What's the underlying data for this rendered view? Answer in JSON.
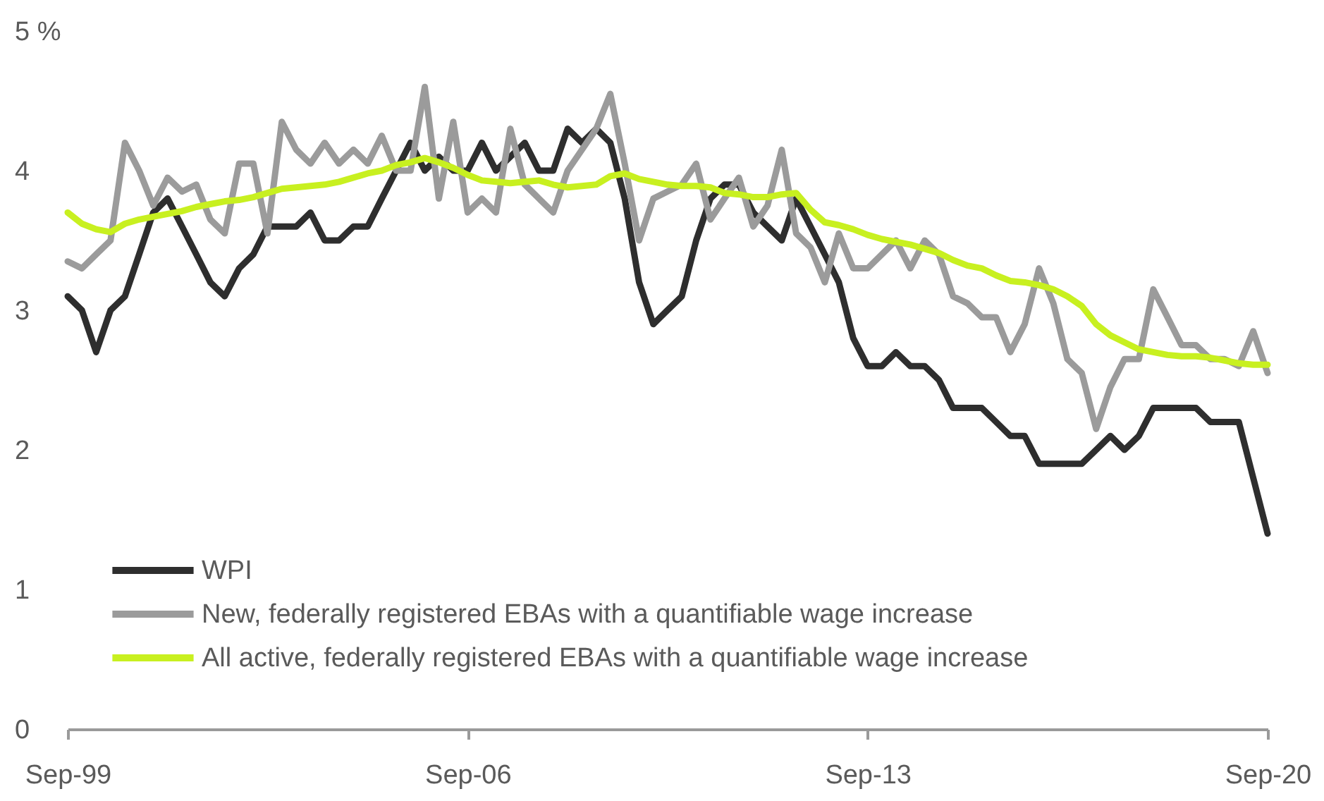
{
  "chart_data": {
    "type": "line",
    "x": [
      "1999-09",
      "1999-12",
      "2000-03",
      "2000-06",
      "2000-09",
      "2000-12",
      "2001-03",
      "2001-06",
      "2001-09",
      "2001-12",
      "2002-03",
      "2002-06",
      "2002-09",
      "2002-12",
      "2003-03",
      "2003-06",
      "2003-09",
      "2003-12",
      "2004-03",
      "2004-06",
      "2004-09",
      "2004-12",
      "2005-03",
      "2005-06",
      "2005-09",
      "2005-12",
      "2006-03",
      "2006-06",
      "2006-09",
      "2006-12",
      "2007-03",
      "2007-06",
      "2007-09",
      "2007-12",
      "2008-03",
      "2008-06",
      "2008-09",
      "2008-12",
      "2009-03",
      "2009-06",
      "2009-09",
      "2009-12",
      "2010-03",
      "2010-06",
      "2010-09",
      "2010-12",
      "2011-03",
      "2011-06",
      "2011-09",
      "2011-12",
      "2012-03",
      "2012-06",
      "2012-09",
      "2012-12",
      "2013-03",
      "2013-06",
      "2013-09",
      "2013-12",
      "2014-03",
      "2014-06",
      "2014-09",
      "2014-12",
      "2015-03",
      "2015-06",
      "2015-09",
      "2015-12",
      "2016-03",
      "2016-06",
      "2016-09",
      "2016-12",
      "2017-03",
      "2017-06",
      "2017-09",
      "2017-12",
      "2018-03",
      "2018-06",
      "2018-09",
      "2018-12",
      "2019-03",
      "2019-06",
      "2019-09",
      "2019-12",
      "2020-03",
      "2020-06",
      "2020-09"
    ],
    "series": [
      {
        "name": "WPI",
        "color": "#2e2e2e",
        "values": [
          3.1,
          3.0,
          2.7,
          3.0,
          3.1,
          3.4,
          3.7,
          3.8,
          3.6,
          3.4,
          3.2,
          3.1,
          3.3,
          3.4,
          3.6,
          3.6,
          3.6,
          3.7,
          3.5,
          3.5,
          3.6,
          3.6,
          3.8,
          4.0,
          4.2,
          4.0,
          4.1,
          4.0,
          4.0,
          4.2,
          4.0,
          4.1,
          4.2,
          4.0,
          4.0,
          4.3,
          4.2,
          4.3,
          4.2,
          3.8,
          3.2,
          2.9,
          3.0,
          3.1,
          3.5,
          3.8,
          3.9,
          3.9,
          3.7,
          3.6,
          3.5,
          3.8,
          3.6,
          3.4,
          3.2,
          2.8,
          2.6,
          2.6,
          2.7,
          2.6,
          2.6,
          2.5,
          2.3,
          2.3,
          2.3,
          2.2,
          2.1,
          2.1,
          1.9,
          1.9,
          1.9,
          1.9,
          2.0,
          2.1,
          2.0,
          2.1,
          2.3,
          2.3,
          2.3,
          2.3,
          2.2,
          2.2,
          2.2,
          1.8,
          1.4
        ]
      },
      {
        "name": "New, federally registered EBAs with a quantifiable wage increase",
        "color": "#9b9b9b",
        "values": [
          3.35,
          3.3,
          3.4,
          3.5,
          4.2,
          4.0,
          3.75,
          3.95,
          3.85,
          3.9,
          3.65,
          3.55,
          4.05,
          4.05,
          3.55,
          4.35,
          4.15,
          4.05,
          4.2,
          4.05,
          4.15,
          4.05,
          4.25,
          4.0,
          4.0,
          4.6,
          3.8,
          4.35,
          3.7,
          3.8,
          3.7,
          4.3,
          3.9,
          3.8,
          3.7,
          4.0,
          4.15,
          4.3,
          4.55,
          4.05,
          3.5,
          3.8,
          3.85,
          3.9,
          4.05,
          3.65,
          3.8,
          3.95,
          3.6,
          3.75,
          4.15,
          3.55,
          3.45,
          3.2,
          3.55,
          3.3,
          3.3,
          3.4,
          3.5,
          3.3,
          3.5,
          3.4,
          3.1,
          3.05,
          2.95,
          2.95,
          2.7,
          2.9,
          3.3,
          3.05,
          2.65,
          2.55,
          2.15,
          2.45,
          2.65,
          2.65,
          3.15,
          2.95,
          2.75,
          2.75,
          2.65,
          2.65,
          2.6,
          2.85,
          2.55
        ]
      },
      {
        "name": "All active, federally registered EBAs with a quantifiable wage increase",
        "color": "#c8f020",
        "values": [
          3.7,
          3.62,
          3.58,
          3.56,
          3.62,
          3.65,
          3.67,
          3.69,
          3.71,
          3.74,
          3.76,
          3.78,
          3.79,
          3.81,
          3.84,
          3.87,
          3.88,
          3.89,
          3.9,
          3.92,
          3.95,
          3.98,
          4.0,
          4.04,
          4.06,
          4.09,
          4.06,
          4.02,
          3.97,
          3.93,
          3.92,
          3.91,
          3.92,
          3.93,
          3.9,
          3.88,
          3.89,
          3.9,
          3.96,
          3.98,
          3.94,
          3.92,
          3.9,
          3.89,
          3.89,
          3.88,
          3.84,
          3.83,
          3.81,
          3.81,
          3.83,
          3.84,
          3.72,
          3.63,
          3.61,
          3.58,
          3.54,
          3.51,
          3.49,
          3.47,
          3.44,
          3.41,
          3.36,
          3.32,
          3.3,
          3.25,
          3.21,
          3.2,
          3.18,
          3.15,
          3.1,
          3.03,
          2.9,
          2.82,
          2.77,
          2.72,
          2.7,
          2.68,
          2.67,
          2.67,
          2.66,
          2.64,
          2.62,
          2.61,
          2.61
        ]
      }
    ],
    "xlim": [
      "1999-09",
      "2020-09"
    ],
    "xticks": [
      {
        "value": "1999-09",
        "label": "Sep-99"
      },
      {
        "value": "2006-09",
        "label": "Sep-06"
      },
      {
        "value": "2013-09",
        "label": "Sep-13"
      },
      {
        "value": "2020-09",
        "label": "Sep-20"
      }
    ],
    "ylim": [
      0,
      5
    ],
    "yticks": [
      0,
      1,
      2,
      3,
      4,
      {
        "value": 5,
        "label": "5 %"
      }
    ],
    "legend": "bottom left",
    "line_style": "solid"
  }
}
